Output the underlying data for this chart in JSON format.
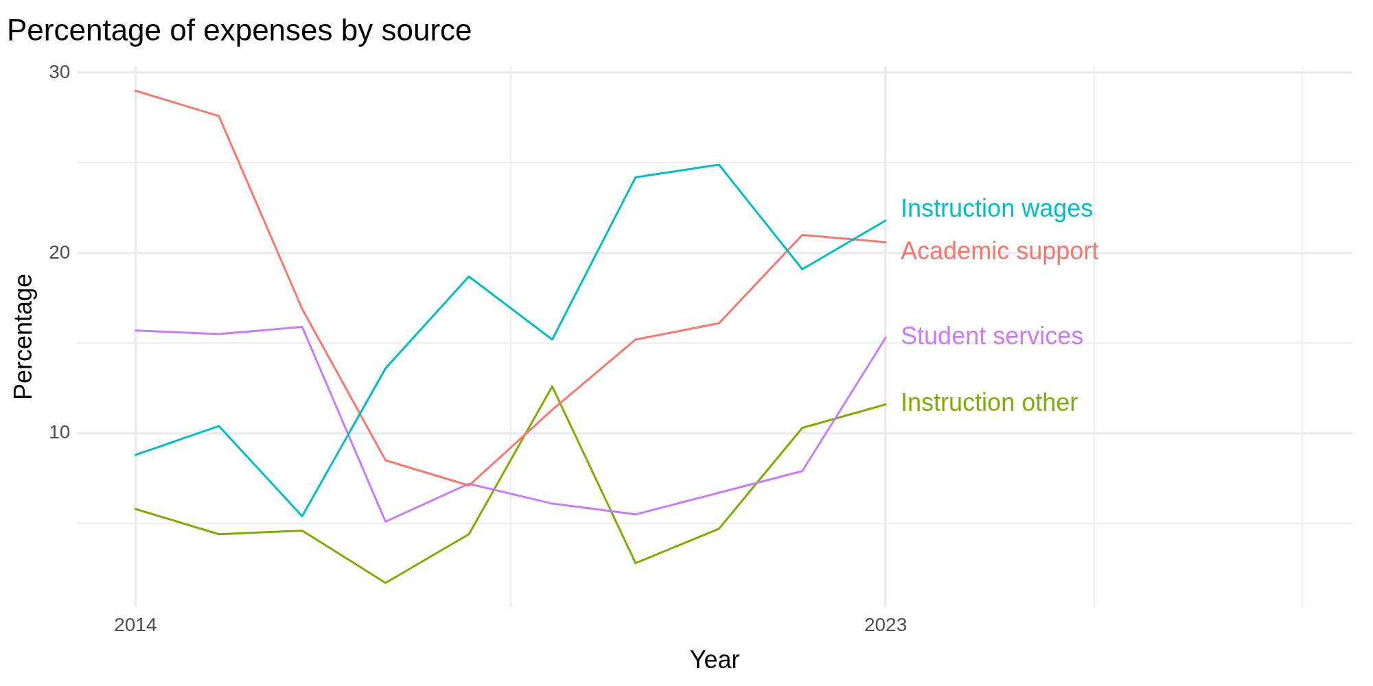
{
  "chart_data": {
    "type": "line",
    "title": "Percentage of expenses by source",
    "xlabel": "Year",
    "ylabel": "Percentage",
    "x": [
      2014,
      2015,
      2016,
      2017,
      2018,
      2019,
      2020,
      2021,
      2022,
      2023
    ],
    "series": [
      {
        "name": "Instruction wages",
        "color": "#00bfc4",
        "values": [
          8.8,
          10.4,
          5.4,
          13.6,
          18.7,
          15.2,
          24.2,
          24.9,
          19.1,
          21.8
        ]
      },
      {
        "name": "Academic support",
        "color": "#f8766d",
        "values": [
          29.0,
          27.6,
          16.9,
          8.5,
          7.1,
          11.3,
          15.2,
          16.1,
          21.0,
          20.6
        ]
      },
      {
        "name": "Student services",
        "color": "#c77cff",
        "values": [
          15.7,
          15.5,
          15.9,
          5.1,
          7.2,
          6.1,
          5.5,
          6.7,
          7.9,
          15.3
        ]
      },
      {
        "name": "Instruction other",
        "color": "#7cae00",
        "values": [
          5.8,
          4.4,
          4.6,
          1.7,
          4.4,
          12.6,
          2.8,
          4.7,
          10.3,
          11.6
        ]
      }
    ],
    "xlim": [
      2013.3,
      2028.6
    ],
    "xticks": [
      2014,
      {
        "value": 2018.5,
        "label": null
      },
      2023,
      {
        "value": 2025.5,
        "label": null
      },
      {
        "value": 2028,
        "label": null
      }
    ],
    "ylim": [
      0.35,
      30.35
    ],
    "yticks": [
      {
        "value": 5,
        "label": null
      },
      10,
      {
        "value": 15,
        "label": null
      },
      20,
      {
        "value": 25,
        "label": null
      },
      30
    ],
    "grid": true,
    "legend": false,
    "marker": "none",
    "line_style": "solid"
  }
}
